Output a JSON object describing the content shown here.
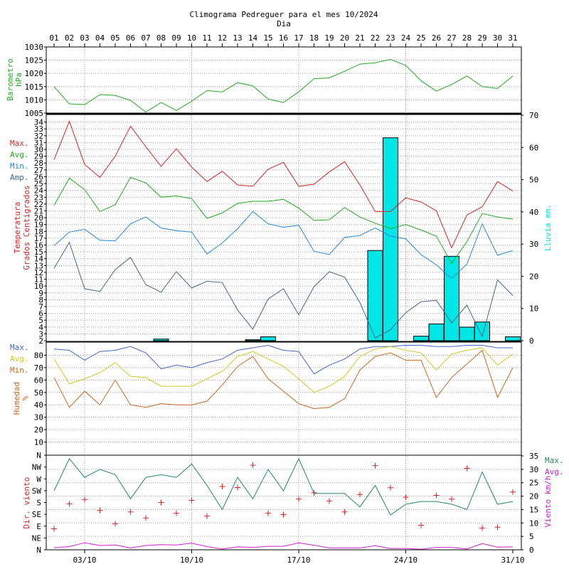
{
  "title": "Climograma Pedreguer para el mes 10/2024",
  "subtitle": "Dia",
  "colors": {
    "frame": "#000000",
    "grid": "#999999",
    "pressure": "#22aa22",
    "max": "#dd2222",
    "avg": "#22aa22",
    "min": "#2288dd",
    "amp": "#446688",
    "rain": "#00e5e5",
    "hum_max": "#4466cc",
    "hum_avg": "#cccc22",
    "hum_min": "#cc6622",
    "wind_dir": "#dd2222",
    "wind_max": "#228866",
    "wind_avg": "#cc22cc"
  },
  "days": [
    "01",
    "02",
    "03",
    "04",
    "05",
    "06",
    "07",
    "08",
    "09",
    "10",
    "11",
    "12",
    "13",
    "14",
    "15",
    "16",
    "17",
    "18",
    "19",
    "20",
    "21",
    "22",
    "23",
    "24",
    "25",
    "26",
    "27",
    "28",
    "29",
    "30",
    "31"
  ],
  "bottom_dates": [
    "03/10",
    "10/10",
    "17/10",
    "24/10",
    "31/10"
  ],
  "chart_data": [
    {
      "type": "line",
      "name": "pressure",
      "ylabel": "Barometro hPa",
      "ylim": [
        1005,
        1030
      ],
      "yticks": [
        1005,
        1010,
        1015,
        1020,
        1025,
        1030
      ],
      "series": [
        {
          "key": "pressure",
          "values": [
            1015.0,
            1008.5,
            1008.2,
            1012.0,
            1011.7,
            1009.8,
            1005.4,
            1009.0,
            1006.0,
            1009.5,
            1013.5,
            1013.0,
            1016.5,
            1015.3,
            1010.3,
            1009.0,
            1013.0,
            1018.0,
            1018.3,
            1020.8,
            1023.5,
            1024.0,
            1025.3,
            1023.0,
            1017.2,
            1013.3,
            1015.8,
            1019.0,
            1015.0,
            1014.3,
            1019.0
          ]
        }
      ]
    },
    {
      "type": "line+bar",
      "name": "temperature",
      "ylabel": [
        "Temperatura",
        "Grados Centigrados"
      ],
      "ylabel_right": "Lluvia mm.",
      "ylim": [
        2,
        35
      ],
      "ylim_right": [
        0,
        70
      ],
      "yticks": [
        2,
        3,
        4,
        5,
        6,
        7,
        8,
        9,
        10,
        11,
        12,
        13,
        14,
        15,
        16,
        17,
        18,
        19,
        20,
        21,
        22,
        23,
        24,
        25,
        26,
        27,
        28,
        29,
        30,
        31,
        32,
        33,
        34
      ],
      "yticks_right": [
        0,
        10,
        20,
        30,
        40,
        50,
        60,
        70
      ],
      "legend": [
        "Max.",
        "Avg.",
        "Min.",
        "Amp."
      ],
      "series": [
        {
          "key": "max",
          "values": [
            28.5,
            34.1,
            27.8,
            25.9,
            29.0,
            33.4,
            30.4,
            27.5,
            30.1,
            27.4,
            25.3,
            26.8,
            24.8,
            24.6,
            27.1,
            28.1,
            24.6,
            24.9,
            26.7,
            28.2,
            24.8,
            20.9,
            20.9,
            22.9,
            22.3,
            21.0,
            15.6,
            20.4,
            21.6,
            25.3,
            23.9
          ]
        },
        {
          "key": "avg",
          "values": [
            21.8,
            25.8,
            24.1,
            20.9,
            21.9,
            25.9,
            25.1,
            23.0,
            23.2,
            22.8,
            19.9,
            20.7,
            22.1,
            22.4,
            22.4,
            22.7,
            21.4,
            19.6,
            19.7,
            21.5,
            20.1,
            19.2,
            18.4,
            19.0,
            18.2,
            17.3,
            13.3,
            16.5,
            20.6,
            20.1,
            19.8
          ]
        },
        {
          "key": "min",
          "values": [
            15.9,
            17.9,
            18.3,
            16.7,
            16.6,
            19.1,
            20.1,
            18.5,
            18.1,
            17.9,
            14.7,
            16.3,
            18.4,
            20.9,
            19.1,
            18.6,
            18.9,
            15.1,
            14.6,
            17.1,
            17.4,
            18.5,
            17.3,
            16.9,
            14.6,
            13.1,
            11.1,
            13.2,
            19.1,
            14.5,
            15.2
          ]
        },
        {
          "key": "amp",
          "values": [
            12.6,
            16.4,
            9.6,
            9.2,
            12.4,
            14.2,
            10.2,
            9.1,
            12.1,
            9.7,
            10.7,
            10.5,
            6.5,
            3.7,
            8.1,
            9.6,
            5.8,
            9.9,
            12.1,
            11.3,
            7.6,
            2.4,
            3.6,
            6.1,
            7.7,
            7.9,
            4.6,
            7.2,
            2.6,
            10.9,
            8.6
          ]
        }
      ],
      "rain": [
        0,
        0,
        0,
        0,
        0,
        0,
        0,
        0.5,
        0,
        0,
        0,
        0,
        0,
        0.3,
        1.2,
        0,
        0,
        0,
        0,
        0,
        0,
        28.0,
        63.0,
        0,
        1.4,
        5.2,
        26.2,
        4.2,
        5.8,
        0,
        1.2
      ]
    },
    {
      "type": "line",
      "name": "humidity",
      "ylabel": [
        "Humedad",
        "%"
      ],
      "ylim": [
        0,
        90
      ],
      "yticks": [
        10,
        20,
        30,
        40,
        50,
        60,
        70,
        80
      ],
      "legend": [
        "Max.",
        "Avg.",
        "Min."
      ],
      "series": [
        {
          "key": "hum_max",
          "values": [
            85,
            84,
            76,
            83,
            84,
            87,
            82,
            69,
            72,
            70,
            74,
            77,
            84,
            86,
            88,
            84,
            83,
            65,
            72,
            77,
            85,
            87,
            87,
            88,
            88,
            87,
            87,
            88,
            88,
            86,
            86
          ]
        },
        {
          "key": "hum_avg",
          "values": [
            77,
            57,
            61,
            66,
            74,
            63,
            62,
            55,
            55,
            55,
            61,
            67,
            79,
            83,
            77,
            71,
            61,
            50,
            55,
            63,
            79,
            85,
            87,
            84,
            82,
            68,
            81,
            84,
            86,
            72,
            81
          ]
        },
        {
          "key": "hum_min",
          "values": [
            62,
            38,
            51,
            40,
            60,
            40,
            38,
            41,
            40,
            40,
            43,
            56,
            71,
            79,
            61,
            51,
            41,
            37,
            38,
            45,
            68,
            79,
            82,
            76,
            76,
            46,
            62,
            73,
            84,
            46,
            70
          ]
        }
      ]
    },
    {
      "type": "scatter+line",
      "name": "wind",
      "ylabel": "Dir. viento",
      "ylabel_right": "Viento km/h",
      "ylim": [
        0,
        35
      ],
      "yticks_right": [
        0,
        5,
        10,
        15,
        20,
        25,
        30,
        35
      ],
      "direction_ticks": [
        "N",
        "NE",
        "E",
        "SE",
        "S",
        "SW",
        "W",
        "NW",
        "N"
      ],
      "legend": [
        "Max.",
        "Avg."
      ],
      "direction_values": [
        80,
        175,
        191,
        150,
        99,
        144,
        121,
        180,
        139,
        188,
        128,
        241,
        237,
        322,
        139,
        134,
        193,
        217,
        186,
        144,
        210,
        320,
        236,
        200,
        93,
        207,
        193,
        310,
        83,
        86,
        220
      ],
      "series": [
        {
          "key": "wind_max",
          "values": [
            22,
            34,
            27,
            30,
            28,
            19,
            27,
            28,
            27,
            32,
            24,
            15,
            27,
            19,
            30,
            22,
            34,
            21,
            21,
            21,
            16,
            24,
            13,
            17,
            18,
            18,
            17,
            15,
            29,
            17,
            18
          ]
        },
        {
          "key": "wind_avg",
          "values": [
            0.8,
            1.2,
            2.6,
            1.6,
            1.8,
            0.7,
            1.6,
            1.9,
            1.8,
            2.5,
            1.2,
            0.3,
            1.1,
            0.9,
            1.3,
            1.3,
            2.6,
            1.7,
            0.7,
            0.7,
            0.7,
            1.5,
            0.5,
            0.5,
            0.2,
            0.9,
            0.9,
            0.3,
            2.3,
            1.0,
            1.1
          ]
        }
      ]
    }
  ]
}
